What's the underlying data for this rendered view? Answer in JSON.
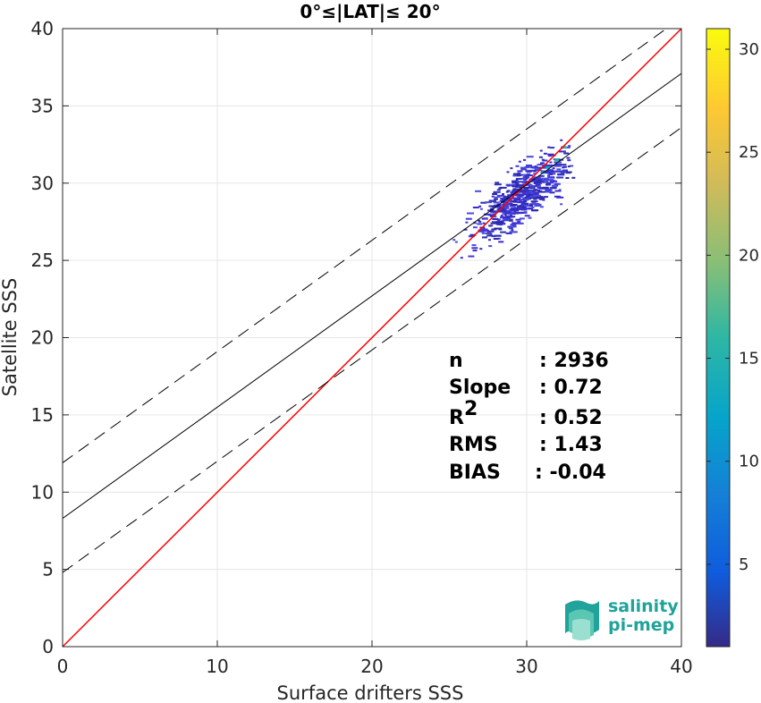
{
  "chart_data": {
    "type": "scatter",
    "title": "0°≤|LAT|≤ 20°",
    "xlabel": "Surface drifters SSS",
    "ylabel": "Satellite SSS",
    "xlim": [
      0,
      40
    ],
    "ylim": [
      0,
      40
    ],
    "xticks": [
      0,
      10,
      20,
      30,
      40
    ],
    "yticks": [
      0,
      5,
      10,
      15,
      20,
      25,
      30,
      35,
      40
    ],
    "grid": true,
    "colorbar": {
      "ticks": [
        5,
        10,
        15,
        20,
        25,
        30
      ],
      "range": [
        1,
        31
      ],
      "colormap": "parula",
      "placement": "right"
    },
    "lines": [
      {
        "name": "one-to-one",
        "style": "solid",
        "color": "#ff0000",
        "slope": 1.0,
        "intercept": 0.0
      },
      {
        "name": "regression",
        "style": "solid",
        "color": "#000000",
        "slope": 0.72,
        "intercept": 8.3
      },
      {
        "name": "upper-bound",
        "style": "dashed",
        "color": "#000000",
        "slope": 0.72,
        "intercept": 11.9
      },
      {
        "name": "lower-bound",
        "style": "dashed",
        "color": "#000000",
        "slope": 0.72,
        "intercept": 4.8
      }
    ],
    "points_description": {
      "x_range": [
        23,
        33
      ],
      "y_range": [
        22.5,
        33
      ],
      "center": [
        29.5,
        29.2
      ]
    },
    "stats": [
      {
        "label": "n",
        "sep": ": ",
        "value": "2936"
      },
      {
        "label": "Slope",
        "sep": ": ",
        "value": "0.72"
      },
      {
        "label": "R",
        "sup": "2",
        "sep": ": ",
        "value": "0.52"
      },
      {
        "label": "RMS",
        "sep": ": ",
        "value": "1.43"
      },
      {
        "label": "BIAS",
        "sep": ": ",
        "value": "-0.04"
      }
    ]
  },
  "logo": {
    "line1": "salinity",
    "line2": "pi-mep",
    "colors": [
      "#1fa39a",
      "#5cc6b4",
      "#9adfcf"
    ]
  }
}
